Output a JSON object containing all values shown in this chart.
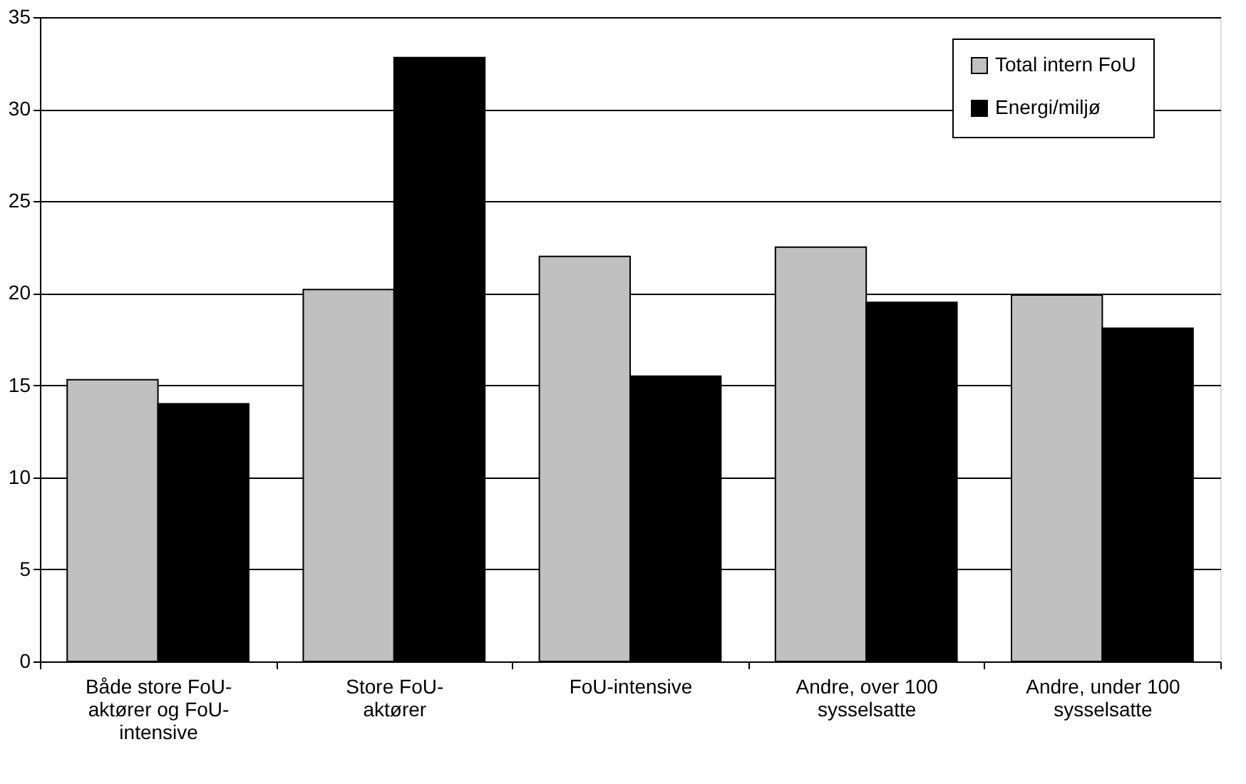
{
  "chart_data": {
    "type": "bar",
    "categories": [
      "Både store FoU-aktører og FoU-intensive",
      "Store FoU-aktører",
      "FoU-intensive",
      "Andre, over 100 sysselsatte",
      "Andre, under 100 sysselsatte"
    ],
    "series": [
      {
        "name": "Total intern FoU",
        "color": "#c0c0c0",
        "values": [
          15.3,
          20.2,
          22.0,
          22.5,
          19.9
        ]
      },
      {
        "name": "Energi/miljø",
        "color": "#000000",
        "values": [
          14.0,
          32.8,
          15.5,
          19.5,
          18.1
        ]
      }
    ],
    "ylim": [
      0,
      35
    ],
    "yticks": [
      0,
      5,
      10,
      15,
      20,
      25,
      30,
      35
    ],
    "grid": "y",
    "legend": "top right"
  }
}
